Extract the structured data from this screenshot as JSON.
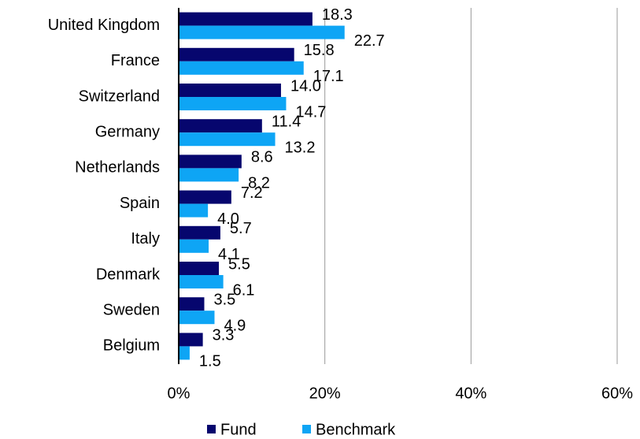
{
  "chart_data": {
    "type": "hbar",
    "categories": [
      "United Kingdom",
      "France",
      "Switzerland",
      "Germany",
      "Netherlands",
      "Spain",
      "Italy",
      "Denmark",
      "Sweden",
      "Belgium"
    ],
    "series": [
      {
        "name": "Fund",
        "color": "#06066e",
        "values": [
          18.3,
          15.8,
          14,
          11.4,
          8.6,
          7.2,
          5.7,
          5.5,
          3.5,
          3.3
        ],
        "value_labels": [
          "18.3",
          "15.8",
          "14.0",
          "11.4",
          "8.6",
          "7.2",
          "5.7",
          "5.5",
          "3.5",
          "3.3"
        ]
      },
      {
        "name": "Benchmark",
        "color": "#0ea5f5",
        "values": [
          22.7,
          17.1,
          14.7,
          13.2,
          8.2,
          4,
          4.1,
          6.1,
          4.9,
          1.5
        ],
        "value_labels": [
          "22.7",
          "17.1",
          "14.7",
          "13.2",
          "8.2",
          "4.0",
          "4.1",
          "6.1",
          "4.9",
          "1.5"
        ]
      }
    ],
    "xlim": [
      0,
      60
    ],
    "xticks": [
      {
        "value": 0,
        "label": "0%"
      },
      {
        "value": 20,
        "label": "20%"
      },
      {
        "value": 40,
        "label": "40%"
      },
      {
        "value": 60,
        "label": "60%"
      }
    ],
    "grid": true,
    "legend": "bottom"
  }
}
